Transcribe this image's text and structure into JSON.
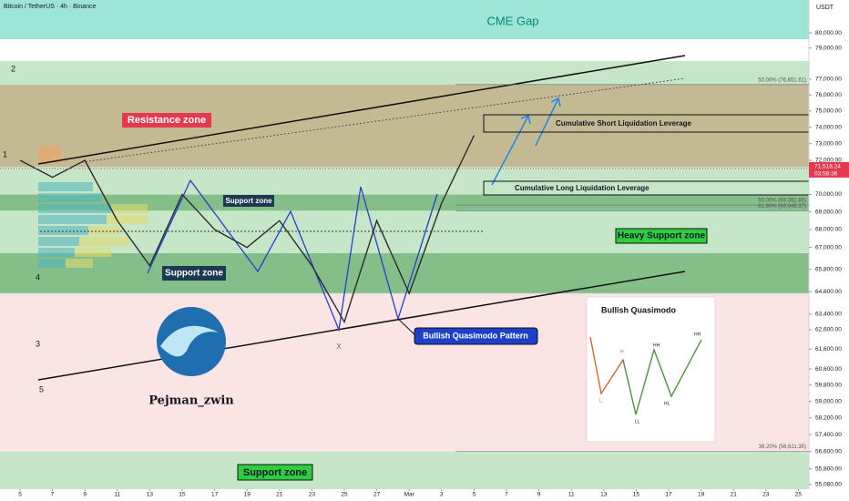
{
  "chart_data": {
    "type": "line",
    "title": "Bitcoin / TetherUS · 4h · Binance",
    "currency": "USDT",
    "categories": [
      "5",
      "7",
      "9",
      "11",
      "13",
      "15",
      "17",
      "19",
      "21",
      "23",
      "25",
      "27",
      "Mar",
      "3",
      "5",
      "7",
      "9",
      "11",
      "13",
      "15",
      "17",
      "19",
      "21",
      "23",
      "25"
    ],
    "values": [
      72000,
      71000,
      72000,
      68500,
      66000,
      70000,
      68000,
      67000,
      68500,
      66000,
      63000,
      68500,
      64500,
      69500,
      73500,
      null,
      null,
      null,
      null,
      null,
      null,
      null,
      null,
      null,
      null
    ],
    "color": "#2b2b2b",
    "ylim": [
      54870,
      82200
    ],
    "log_scale": true,
    "yticks": [
      {
        "value": 80000,
        "label": "80,000.00"
      },
      {
        "value": 79000,
        "label": "79,000.00"
      },
      {
        "value": 77000,
        "label": "77,000.00"
      },
      {
        "value": 76000,
        "label": "76,000.00"
      },
      {
        "value": 75000,
        "label": "75,000.00"
      },
      {
        "value": 74000,
        "label": "74,000.00"
      },
      {
        "value": 73000,
        "label": "73,000.00"
      },
      {
        "value": 72000,
        "label": "72,000.00"
      },
      {
        "value": 70000,
        "label": "70,000.00"
      },
      {
        "value": 69000,
        "label": "69,000.00"
      },
      {
        "value": 68000,
        "label": "68,000.00"
      },
      {
        "value": 67000,
        "label": "67,000.00"
      },
      {
        "value": 65800,
        "label": "65,800.00"
      },
      {
        "value": 64600,
        "label": "64,600.00"
      },
      {
        "value": 63400,
        "label": "63,400.00"
      },
      {
        "value": 62600,
        "label": "62,600.00"
      },
      {
        "value": 61600,
        "label": "61,600.00"
      },
      {
        "value": 60600,
        "label": "60,600.00"
      },
      {
        "value": 59800,
        "label": "59,800.00"
      },
      {
        "value": 59000,
        "label": "59,000.00"
      },
      {
        "value": 58200,
        "label": "58,200.00"
      },
      {
        "value": 57400,
        "label": "57,400.00"
      },
      {
        "value": 56600,
        "label": "56,600.00"
      },
      {
        "value": 55800,
        "label": "55,800.00"
      },
      {
        "value": 55080,
        "label": "55,080.00"
      }
    ],
    "last_price": {
      "value": 71518.24,
      "label": "71,518.24"
    },
    "countdown": "03:58:36",
    "zones": [
      {
        "from": 79580,
        "to": 82200,
        "color": "rgba(38,198,166,0.45)"
      },
      {
        "from": 64480,
        "to": 78160,
        "color": "rgba(129,199,132,0.45)"
      },
      {
        "from": 71620,
        "to": 76640,
        "color": "rgba(190,130,80,0.45)"
      },
      {
        "from": 56600,
        "to": 64480,
        "color": "rgba(244,196,196,0.45)"
      },
      {
        "from": 54870,
        "to": 56600,
        "color": "rgba(129,199,132,0.45)"
      },
      {
        "from": 69070,
        "to": 69990,
        "color": "rgba(56,142,60,0.45)"
      },
      {
        "from": 64520,
        "to": 66680,
        "color": "rgba(56,142,60,0.45)"
      }
    ],
    "fib_levels": [
      {
        "value": 76651.61,
        "label": "50.00% (76,651.61)"
      },
      {
        "value": 69392.86,
        "label": "50.00% (69,392.86)"
      },
      {
        "value": 69048.37,
        "label": "61.80% (69,048.37)"
      },
      {
        "value": 56611.35,
        "label": "38.20% (56,611.35)"
      }
    ]
  },
  "annotations": {
    "cme_gap": "CME Gap",
    "resistance_zone": "Resistance zone",
    "support_zone_mid": "Support zone",
    "support_zone_left": "Support zone",
    "support_zone_bottom": "Support zone",
    "heavy_support_zone": "Heavy Support zone",
    "short_liquidation": "Cumulative Short Liquidation Leverage",
    "long_liquidation": "Cumulative Long Liquidation Leverage",
    "pattern": "Bullish Quasimodo Pattern",
    "x_point": "X",
    "author": "Pejman_zwin",
    "waves": [
      "2",
      "1",
      "4",
      "3",
      "5"
    ],
    "inset": {
      "title": "Bullish Quasimodo",
      "labels": [
        "L",
        "H",
        "LL",
        "HH",
        "HL",
        "HH"
      ]
    }
  }
}
